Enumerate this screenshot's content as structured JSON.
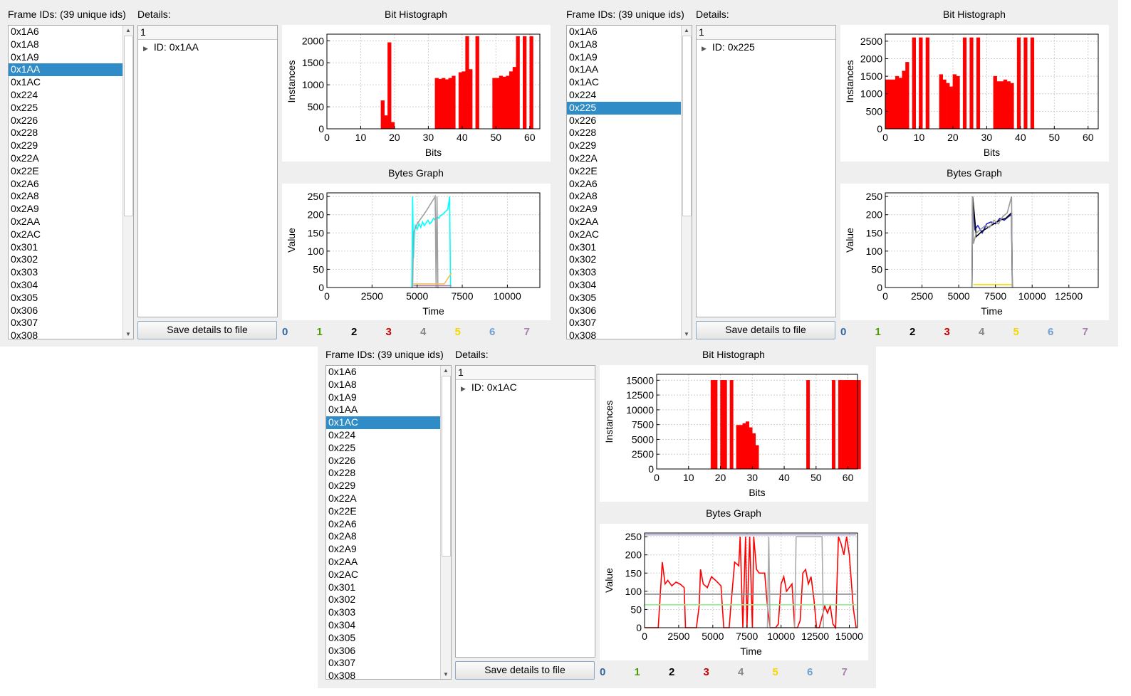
{
  "windows": [
    {
      "frame_ids_label": "Frame IDs: (39 unique ids)",
      "details_label": "Details:",
      "frame_ids": [
        "0x1A6",
        "0x1A8",
        "0x1A9",
        "0x1AA",
        "0x1AC",
        "0x224",
        "0x225",
        "0x226",
        "0x228",
        "0x229",
        "0x22A",
        "0x22E",
        "0x2A6",
        "0x2A8",
        "0x2A9",
        "0x2AA",
        "0x2AC",
        "0x301",
        "0x302",
        "0x303",
        "0x304",
        "0x305",
        "0x306",
        "0x307",
        "0x308"
      ],
      "selected_id": "0x1AA",
      "details_header": "1",
      "details_tree_item": "ID: 0x1AA",
      "save_button": "Save details to file",
      "legend": [
        "0",
        "1",
        "2",
        "3",
        "4",
        "5",
        "6",
        "7"
      ],
      "bit_histogram_title": "Bit Histograph",
      "bytes_graph_title": "Bytes Graph"
    },
    {
      "frame_ids_label": "Frame IDs: (39 unique ids)",
      "details_label": "Details:",
      "frame_ids": [
        "0x1A6",
        "0x1A8",
        "0x1A9",
        "0x1AA",
        "0x1AC",
        "0x224",
        "0x225",
        "0x226",
        "0x228",
        "0x229",
        "0x22A",
        "0x22E",
        "0x2A6",
        "0x2A8",
        "0x2A9",
        "0x2AA",
        "0x2AC",
        "0x301",
        "0x302",
        "0x303",
        "0x304",
        "0x305",
        "0x306",
        "0x307",
        "0x308"
      ],
      "selected_id": "0x225",
      "details_header": "1",
      "details_tree_item": "ID: 0x225",
      "save_button": "Save details to file",
      "legend": [
        "0",
        "1",
        "2",
        "3",
        "4",
        "5",
        "6",
        "7"
      ],
      "bit_histogram_title": "Bit Histograph",
      "bytes_graph_title": "Bytes Graph"
    },
    {
      "frame_ids_label": "Frame IDs: (39 unique ids)",
      "details_label": "Details:",
      "frame_ids": [
        "0x1A6",
        "0x1A8",
        "0x1A9",
        "0x1AA",
        "0x1AC",
        "0x224",
        "0x225",
        "0x226",
        "0x228",
        "0x229",
        "0x22A",
        "0x22E",
        "0x2A6",
        "0x2A8",
        "0x2A9",
        "0x2AA",
        "0x2AC",
        "0x301",
        "0x302",
        "0x303",
        "0x304",
        "0x305",
        "0x306",
        "0x307",
        "0x308"
      ],
      "selected_id": "0x1AC",
      "details_header": "1",
      "details_tree_item": "ID: 0x1AC",
      "save_button": "Save details to file",
      "legend": [
        "0",
        "1",
        "2",
        "3",
        "4",
        "5",
        "6",
        "7"
      ],
      "bit_histogram_title": "Bit Histograph",
      "bytes_graph_title": "Bytes Graph"
    }
  ],
  "legend_colors": [
    "#3465a4",
    "#4e9a06",
    "#000000",
    "#cc0000",
    "#888888",
    "#f5d800",
    "#729fcf",
    "#ad7fa8"
  ],
  "chart_data": [
    {
      "window": 0,
      "type": "bar",
      "title": "",
      "xlabel": "Bits",
      "ylabel": "Instances",
      "xlim": [
        0,
        63
      ],
      "ylim": [
        0,
        2150
      ],
      "xticks": [
        0,
        10,
        20,
        30,
        40,
        50,
        60
      ],
      "yticks": [
        0,
        500,
        1000,
        1500,
        2000
      ],
      "color": "#ff0000",
      "grid": true,
      "values": [
        0,
        0,
        0,
        0,
        0,
        0,
        0,
        0,
        0,
        0,
        0,
        0,
        0,
        0,
        0,
        0,
        640,
        300,
        1960,
        150,
        0,
        0,
        0,
        0,
        0,
        0,
        0,
        0,
        0,
        0,
        0,
        0,
        1150,
        1130,
        1150,
        1120,
        1150,
        1200,
        0,
        1280,
        1300,
        2100,
        1350,
        0,
        2100,
        0,
        0,
        0,
        0,
        1150,
        1150,
        1200,
        1180,
        1200,
        1300,
        1400,
        2100,
        0,
        2100,
        0,
        2100,
        0,
        0,
        0
      ]
    },
    {
      "window": 0,
      "type": "line",
      "title": "",
      "xlabel": "Time",
      "ylabel": "Value",
      "xlim": [
        0,
        11800
      ],
      "ylim": [
        0,
        260
      ],
      "xticks": [
        0,
        2500,
        5000,
        7500,
        10000
      ],
      "yticks": [
        0,
        50,
        100,
        150,
        200,
        250
      ],
      "grid": true,
      "series": [
        {
          "color": "#00ffff",
          "x": [
            4700,
            4750,
            4800,
            4850,
            4900,
            5000,
            5100,
            5200,
            5300,
            5400,
            5500,
            5600,
            5700,
            5800,
            5900,
            6000,
            6100,
            6200,
            6300,
            6400,
            6500,
            6600,
            6700,
            6800,
            6850,
            6900
          ],
          "y": [
            0,
            250,
            80,
            150,
            170,
            160,
            175,
            165,
            180,
            170,
            178,
            185,
            175,
            180,
            190,
            185,
            195,
            190,
            198,
            200,
            205,
            210,
            215,
            250,
            0,
            0
          ]
        },
        {
          "color": "#a0a0a0",
          "x": [
            4750,
            4800,
            5000,
            5500,
            6000,
            6050,
            6100,
            6150,
            6200
          ],
          "y": [
            0,
            150,
            175,
            210,
            250,
            0,
            250,
            0,
            0
          ]
        },
        {
          "color": "#ad7fa8",
          "x": [
            4800,
            6900
          ],
          "y": [
            5,
            5
          ]
        },
        {
          "color": "#f0c060",
          "x": [
            4800,
            6500,
            6900
          ],
          "y": [
            10,
            10,
            40
          ]
        }
      ]
    },
    {
      "window": 1,
      "type": "bar",
      "title": "",
      "xlabel": "Bits",
      "ylabel": "Instances",
      "xlim": [
        0,
        63
      ],
      "ylim": [
        0,
        2700
      ],
      "xticks": [
        0,
        10,
        20,
        30,
        40,
        50,
        60
      ],
      "yticks": [
        0,
        500,
        1000,
        1500,
        2000,
        2500
      ],
      "color": "#ff0000",
      "grid": true,
      "values": [
        1400,
        1400,
        1400,
        1500,
        1450,
        1650,
        1900,
        0,
        2600,
        0,
        2600,
        0,
        2600,
        0,
        0,
        0,
        1550,
        1400,
        1300,
        1200,
        1550,
        1500,
        0,
        2600,
        0,
        2600,
        0,
        2600,
        0,
        0,
        0,
        0,
        1500,
        1350,
        1350,
        1400,
        1350,
        1300,
        0,
        2600,
        0,
        2600,
        0,
        2600,
        0,
        0,
        0,
        0,
        0,
        0,
        0,
        0,
        0,
        0,
        0,
        0,
        0,
        0,
        0,
        0,
        0,
        0,
        0,
        0
      ]
    },
    {
      "window": 1,
      "type": "line",
      "title": "",
      "xlabel": "Time",
      "ylabel": "Value",
      "xlim": [
        0,
        14500
      ],
      "ylim": [
        0,
        260
      ],
      "xticks": [
        0,
        2500,
        5000,
        7500,
        10000,
        12500
      ],
      "yticks": [
        0,
        50,
        100,
        150,
        200,
        250
      ],
      "grid": true,
      "series": [
        {
          "color": "#2222cc",
          "x": [
            5900,
            5950,
            6100,
            6300,
            6600,
            6900,
            7200,
            7500,
            7800,
            8100,
            8400,
            8600,
            8650
          ],
          "y": [
            0,
            250,
            160,
            170,
            150,
            175,
            180,
            175,
            190,
            185,
            195,
            200,
            0
          ]
        },
        {
          "color": "#000000",
          "x": [
            5900,
            5950,
            6200,
            6600,
            7000,
            7400,
            7800,
            8200,
            8600,
            8650
          ],
          "y": [
            0,
            250,
            140,
            155,
            165,
            175,
            185,
            190,
            205,
            0
          ]
        },
        {
          "color": "#999999",
          "x": [
            5900,
            5950,
            6000,
            6200,
            6500,
            6800,
            7100,
            7400,
            7700,
            8000,
            8300,
            8600,
            8650
          ],
          "y": [
            0,
            250,
            120,
            150,
            160,
            170,
            165,
            185,
            175,
            195,
            205,
            250,
            0
          ]
        },
        {
          "color": "#f5d800",
          "x": [
            6000,
            8600
          ],
          "y": [
            8,
            8
          ]
        }
      ]
    },
    {
      "window": 2,
      "type": "bar",
      "title": "",
      "xlabel": "Bits",
      "ylabel": "Instances",
      "xlim": [
        0,
        63
      ],
      "ylim": [
        0,
        16000
      ],
      "xticks": [
        0,
        10,
        20,
        30,
        40,
        50,
        60
      ],
      "yticks": [
        0,
        2500,
        5000,
        7500,
        10000,
        12500,
        15000
      ],
      "color": "#ff0000",
      "grid": true,
      "values": [
        0,
        0,
        0,
        0,
        0,
        0,
        0,
        0,
        0,
        0,
        0,
        0,
        0,
        0,
        0,
        0,
        0,
        15000,
        15000,
        0,
        15000,
        15000,
        0,
        15000,
        0,
        7400,
        7400,
        7700,
        8000,
        7000,
        6000,
        4000,
        0,
        0,
        0,
        0,
        0,
        0,
        0,
        0,
        0,
        0,
        0,
        0,
        0,
        0,
        0,
        15000,
        0,
        0,
        0,
        0,
        0,
        0,
        0,
        15000,
        0,
        15000,
        15000,
        15000,
        15000,
        15000,
        15000,
        15000
      ]
    },
    {
      "window": 2,
      "type": "line",
      "title": "",
      "xlabel": "Time",
      "ylabel": "Value",
      "xlim": [
        0,
        15600
      ],
      "ylim": [
        0,
        260
      ],
      "xticks": [
        0,
        2500,
        5000,
        7500,
        10000,
        12500,
        15000
      ],
      "yticks": [
        0,
        50,
        100,
        150,
        200,
        250
      ],
      "grid": true,
      "series": [
        {
          "color": "#ff0000",
          "x": [
            0,
            1000,
            1100,
            1300,
            1500,
            1700,
            2000,
            2300,
            2600,
            2900,
            3000,
            3200,
            3800,
            4000,
            4100,
            4300,
            4600,
            4900,
            5200,
            5600,
            5800,
            6200,
            6300,
            6600,
            6900,
            7000,
            7200,
            7400,
            7500,
            7700,
            7900,
            8000,
            8200,
            8400,
            8600,
            8800,
            9000,
            9200,
            9400,
            9600,
            9800,
            10000,
            10200,
            10400,
            10600,
            10800,
            11000,
            11200,
            11400,
            11600,
            11800,
            12000,
            12200,
            12400,
            12600,
            12800,
            13000,
            13200,
            13400,
            13600,
            13800,
            14000,
            14200,
            14400,
            14600,
            14800,
            15000,
            15300,
            15500
          ],
          "y": [
            0,
            0,
            60,
            180,
            120,
            130,
            115,
            125,
            120,
            110,
            0,
            0,
            0,
            60,
            160,
            120,
            110,
            140,
            130,
            115,
            0,
            0,
            50,
            180,
            170,
            250,
            0,
            250,
            0,
            250,
            0,
            250,
            160,
            150,
            150,
            150,
            60,
            0,
            0,
            0,
            10,
            120,
            140,
            100,
            110,
            120,
            0,
            0,
            20,
            150,
            160,
            120,
            140,
            80,
            0,
            0,
            30,
            60,
            40,
            60,
            10,
            0,
            250,
            230,
            200,
            250,
            200,
            50,
            0
          ]
        },
        {
          "color": "#888888",
          "x": [
            0,
            15500
          ],
          "y": [
            92,
            92
          ]
        },
        {
          "color": "#90ee90",
          "x": [
            0,
            15500
          ],
          "y": [
            63,
            63
          ]
        },
        {
          "color": "#aa99cc",
          "x": [
            0,
            15500
          ],
          "y": [
            255,
            255
          ]
        },
        {
          "color": "#aaaaaa",
          "x": [
            9000,
            9100,
            9200,
            11000,
            11100,
            13000,
            13100
          ],
          "y": [
            0,
            250,
            0,
            0,
            250,
            250,
            0
          ]
        }
      ]
    }
  ]
}
